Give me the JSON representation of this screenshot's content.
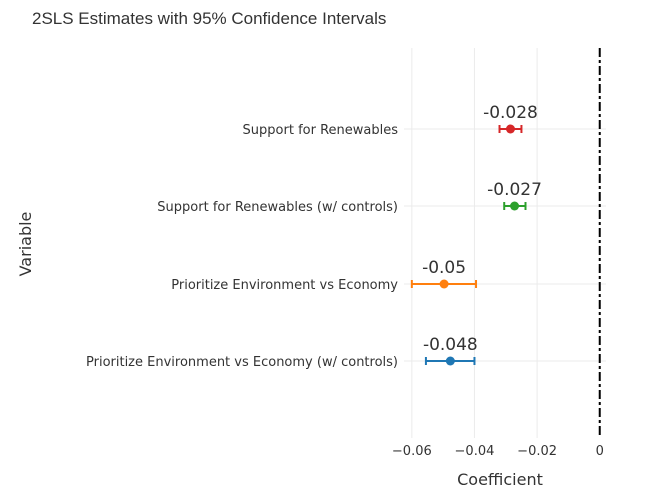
{
  "chart_data": {
    "type": "scatter",
    "title": "2SLS Estimates with 95% Confidence Intervals",
    "xlabel": "Coefficient",
    "ylabel": "Variable",
    "xlim": [
      -0.0625,
      0.002
    ],
    "x_ticks": [
      {
        "value": -0.06,
        "label": "−0.06"
      },
      {
        "value": -0.04,
        "label": "−0.04"
      },
      {
        "value": -0.02,
        "label": "−0.02"
      },
      {
        "value": 0,
        "label": "0"
      }
    ],
    "grid": true,
    "reference_line": {
      "x": 0,
      "style": "dashed",
      "color": "#000000"
    },
    "points": [
      {
        "category": "Support for Renewables",
        "estimate": -0.0285,
        "ci_low": -0.032,
        "ci_high": -0.025,
        "label": "-0.028",
        "color": "#d62728"
      },
      {
        "category": "Support for Renewables (w/ controls)",
        "estimate": -0.0272,
        "ci_low": -0.0305,
        "ci_high": -0.0237,
        "label": "-0.027",
        "color": "#2ca02c"
      },
      {
        "category": "Prioritize Environment vs Economy",
        "estimate": -0.0497,
        "ci_low": -0.06,
        "ci_high": -0.0395,
        "label": "-0.05",
        "color": "#ff7f0e"
      },
      {
        "category": "Prioritize Environment vs Economy (w/ controls)",
        "estimate": -0.0477,
        "ci_low": -0.0555,
        "ci_high": -0.04,
        "label": "-0.048",
        "color": "#1f77b4"
      }
    ]
  }
}
